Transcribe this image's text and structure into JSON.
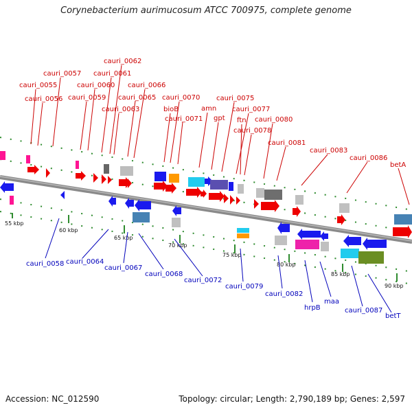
{
  "header": {
    "title": "Corynebacterium aurimucosum ATCC 700975, complete genome"
  },
  "footer": {
    "accession": "Accession: NC_012590",
    "summary": "Topology: circular; Length: 2,790,189 bp; Genes: 2,597"
  },
  "colors": {
    "forward_label": "#cc0000",
    "reverse_label": "#0000bb",
    "tick_green": "#2e8b2e",
    "backbone": "#8a8a8a"
  },
  "scale": {
    "ticks": [
      {
        "label": "55 kbp"
      },
      {
        "label": "60 kbp"
      },
      {
        "label": "65 kbp"
      },
      {
        "label": "70 kbp"
      },
      {
        "label": "75 kbp"
      },
      {
        "label": "80 kbp"
      },
      {
        "label": "85 kbp"
      },
      {
        "label": "90 kbp"
      }
    ]
  },
  "forward_labels": [
    "cauri_0055",
    "cauri_0056",
    "cauri_0057",
    "cauri_0059",
    "cauri_0060",
    "cauri_0061",
    "cauri_0062",
    "cauri_0063",
    "cauri_0065",
    "cauri_0066",
    "bioB",
    "cauri_0070",
    "cauri_0071",
    "amn",
    "gpt",
    "cauri_0075",
    "cauri_0077",
    "ftn",
    "cauri_0078",
    "cauri_0080",
    "cauri_0081",
    "cauri_0083",
    "cauri_0086",
    "betA"
  ],
  "reverse_labels": [
    "cauri_0058",
    "cauri_0064",
    "cauri_0067",
    "cauri_0068",
    "cauri_0072",
    "cauri_0079",
    "cauri_0082",
    "hrpB",
    "maa",
    "cauri_0087",
    "betT"
  ]
}
